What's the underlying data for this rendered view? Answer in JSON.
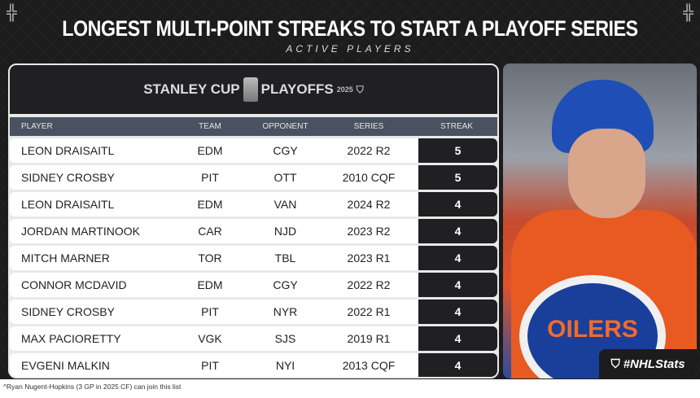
{
  "title": "LONGEST MULTI-POINT STREAKS TO START A PLAYOFF SERIES",
  "subtitle": "ACTIVE PLAYERS",
  "logo": {
    "left": "STANLEY CUP",
    "right": "PLAYOFFS",
    "year": "2025"
  },
  "columns": [
    "PLAYER",
    "TEAM",
    "OPPONENT",
    "SERIES",
    "STREAK"
  ],
  "rows": [
    [
      "LEON DRAISAITL",
      "EDM",
      "CGY",
      "2022 R2",
      "5"
    ],
    [
      "SIDNEY CROSBY",
      "PIT",
      "OTT",
      "2010 CQF",
      "5"
    ],
    [
      "LEON DRAISAITL",
      "EDM",
      "VAN",
      "2024 R2",
      "4"
    ],
    [
      "JORDAN MARTINOOK",
      "CAR",
      "NJD",
      "2023 R2",
      "4"
    ],
    [
      "MITCH MARNER",
      "TOR",
      "TBL",
      "2023 R1",
      "4"
    ],
    [
      "CONNOR MCDAVID",
      "EDM",
      "CGY",
      "2022 R2",
      "4"
    ],
    [
      "SIDNEY CROSBY",
      "PIT",
      "NYR",
      "2022 R1",
      "4"
    ],
    [
      "MAX PACIORETTY",
      "VGK",
      "SJS",
      "2019 R1",
      "4"
    ],
    [
      "EVGENI MALKIN",
      "PIT",
      "NYI",
      "2013 CQF",
      "4"
    ]
  ],
  "photo": {
    "crest_text": "OILERS"
  },
  "hashtag": "#NHLStats",
  "footnote": "^Ryan Nugent-Hopkins (3 GP in 2025 CF) can join this list"
}
